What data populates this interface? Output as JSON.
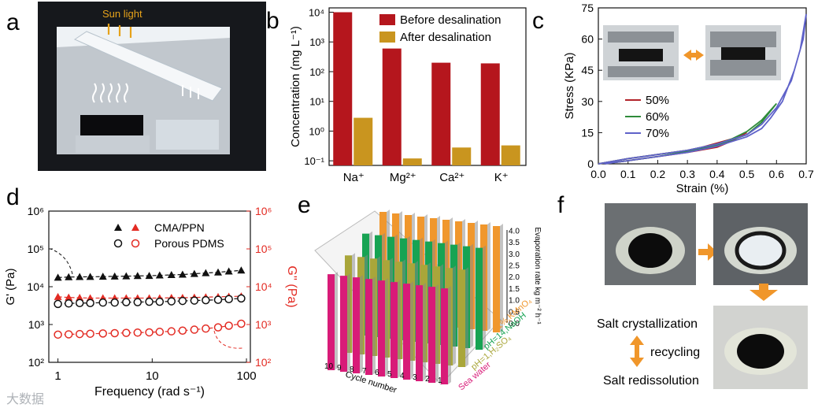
{
  "panels": {
    "a": {
      "letter": "a",
      "label": "Sun light"
    },
    "b": {
      "letter": "b"
    },
    "c": {
      "letter": "c"
    },
    "d": {
      "letter": "d"
    },
    "e": {
      "letter": "e"
    },
    "f": {
      "letter": "f",
      "step1": "Salt crystallization",
      "step2": "recycling",
      "step3": "Salt redissolution"
    }
  },
  "watermark": "大数据",
  "colors": {
    "red": "#b5161d",
    "gold": "#c9951f",
    "c50": "#b2232a",
    "c60": "#2e8b3a",
    "c70": "#5f62c9",
    "dblack": "#111111",
    "dred": "#e32b23",
    "pink": "#d81b78",
    "olive": "#a9a63a",
    "green": "#17a353",
    "orange": "#f0972d"
  },
  "chart_data": [
    {
      "id": "b",
      "type": "bar",
      "yscale": "log",
      "categories": [
        "Na⁺",
        "Mg²⁺",
        "Ca²⁺",
        "K⁺"
      ],
      "series": [
        {
          "name": "Before desalination",
          "values": [
            10000,
            600,
            200,
            190
          ]
        },
        {
          "name": "After desalination",
          "values": [
            2.8,
            0.12,
            0.28,
            0.33
          ]
        }
      ],
      "ylabel": "Concentration (mg L⁻¹)",
      "yticks": [
        "10⁻¹",
        "10⁰",
        "10¹",
        "10²",
        "10³",
        "10⁴"
      ],
      "ylim": [
        0.07,
        14000
      ]
    },
    {
      "id": "c",
      "type": "line",
      "xlabel": "Strain (%)",
      "ylabel": "Stress (KPa)",
      "xticks": [
        "0.0",
        "0.1",
        "0.2",
        "0.3",
        "0.4",
        "0.5",
        "0.6",
        "0.7"
      ],
      "yticks": [
        "0",
        "15",
        "30",
        "45",
        "60",
        "75"
      ],
      "xlim": [
        0,
        0.7
      ],
      "ylim": [
        0,
        75
      ],
      "series": [
        {
          "name": "50%",
          "x": [
            0,
            0.1,
            0.2,
            0.3,
            0.35,
            0.4,
            0.45,
            0.5,
            0.45,
            0.4,
            0.3,
            0.2,
            0.1,
            0.02
          ],
          "y": [
            0,
            2.5,
            4.5,
            6.5,
            8,
            10,
            12,
            15,
            11,
            8,
            5.5,
            3.5,
            1.5,
            0
          ]
        },
        {
          "name": "60%",
          "x": [
            0,
            0.1,
            0.2,
            0.3,
            0.4,
            0.45,
            0.5,
            0.55,
            0.6,
            0.55,
            0.5,
            0.4,
            0.3,
            0.2,
            0.1,
            0.02
          ],
          "y": [
            0,
            2.5,
            4.5,
            6.5,
            9.5,
            12,
            15.5,
            21,
            29,
            20,
            14,
            9,
            6,
            3.5,
            1.5,
            0
          ]
        },
        {
          "name": "70%",
          "x": [
            0,
            0.1,
            0.2,
            0.3,
            0.4,
            0.5,
            0.55,
            0.6,
            0.65,
            0.68,
            0.7,
            0.69,
            0.66,
            0.62,
            0.58,
            0.55,
            0.5,
            0.4,
            0.3,
            0.2,
            0.1,
            0.02
          ],
          "y": [
            0,
            2.5,
            4.5,
            6.5,
            9.5,
            14,
            19,
            27,
            40,
            55,
            72,
            60,
            45,
            30,
            22,
            17,
            13,
            8.5,
            5.5,
            3.5,
            1.5,
            0
          ]
        }
      ]
    },
    {
      "id": "d",
      "type": "scatter",
      "yscale": "log",
      "xscale": "log",
      "xlabel": "Frequency (rad s⁻¹)",
      "ylabel": "G' (Pa)",
      "y2label": "G'' (Pa)",
      "xticks": [
        "1",
        "10",
        "100"
      ],
      "yticks": [
        "10²",
        "10³",
        "10⁴",
        "10⁵",
        "10⁶"
      ],
      "ylim": [
        100,
        1000000
      ],
      "xlim": [
        0.8,
        110
      ],
      "legend": [
        "CMA/PPN",
        "Porous PDMS"
      ],
      "x": [
        1,
        1.3,
        1.7,
        2.2,
        3,
        4,
        5.3,
        7,
        9.3,
        12,
        16,
        21,
        28,
        37,
        50,
        65,
        88
      ],
      "series": [
        {
          "name": "CMA/PPN G'",
          "values": [
            17500,
            18000,
            18200,
            18300,
            18500,
            18800,
            19000,
            19300,
            19500,
            20000,
            20500,
            21000,
            22000,
            23000,
            24000,
            25500,
            27000
          ]
        },
        {
          "name": "CMA/PPN G''",
          "values": [
            5400,
            5200,
            5100,
            5000,
            5000,
            5000,
            5000,
            5000,
            5000,
            5000,
            5100,
            5100,
            5200,
            5300,
            5400,
            5500,
            5600
          ]
        },
        {
          "name": "Porous PDMS G'",
          "values": [
            3500,
            3600,
            3700,
            3700,
            3800,
            3800,
            3900,
            3900,
            4000,
            4000,
            4100,
            4200,
            4300,
            4400,
            4500,
            4700,
            4900
          ]
        },
        {
          "name": "Porous PDMS G''",
          "values": [
            540,
            550,
            560,
            570,
            580,
            590,
            600,
            610,
            620,
            640,
            660,
            690,
            730,
            780,
            840,
            930,
            1050
          ]
        }
      ]
    },
    {
      "id": "e",
      "type": "bar",
      "subtype": "3d-grouped",
      "xlabel": "Cycle number",
      "zlabel": "Evaporation rate kg m⁻² h⁻¹",
      "categories": [
        "10",
        "9",
        "8",
        "7",
        "6",
        "5",
        "4",
        "3",
        "2",
        "1"
      ],
      "zticks": [
        "0.0",
        "0.5",
        "1.0",
        "1.5",
        "2.0",
        "2.5",
        "3.0",
        "3.5",
        "4.0"
      ],
      "zlim": [
        0,
        4
      ],
      "series": [
        {
          "name": "Sea water",
          "values": [
            3.25,
            3.25,
            3.25,
            3.25,
            3.25,
            3.25,
            3.25,
            3.25,
            3.25,
            3.25
          ]
        },
        {
          "name": "pH=1,H₂SO₄",
          "values": [
            3.3,
            3.3,
            3.3,
            3.3,
            3.3,
            3.3,
            3.3,
            3.3,
            3.3,
            3.3
          ]
        },
        {
          "name": "pH=14,NaOH",
          "values": [
            3.45,
            3.45,
            3.45,
            3.45,
            3.45,
            3.45,
            3.45,
            3.45,
            3.45,
            3.45
          ]
        },
        {
          "name": "1%,KMnO₄",
          "values": [
            3.6,
            3.6,
            3.6,
            3.6,
            3.6,
            3.6,
            3.6,
            3.6,
            3.6,
            3.6
          ]
        }
      ]
    }
  ]
}
